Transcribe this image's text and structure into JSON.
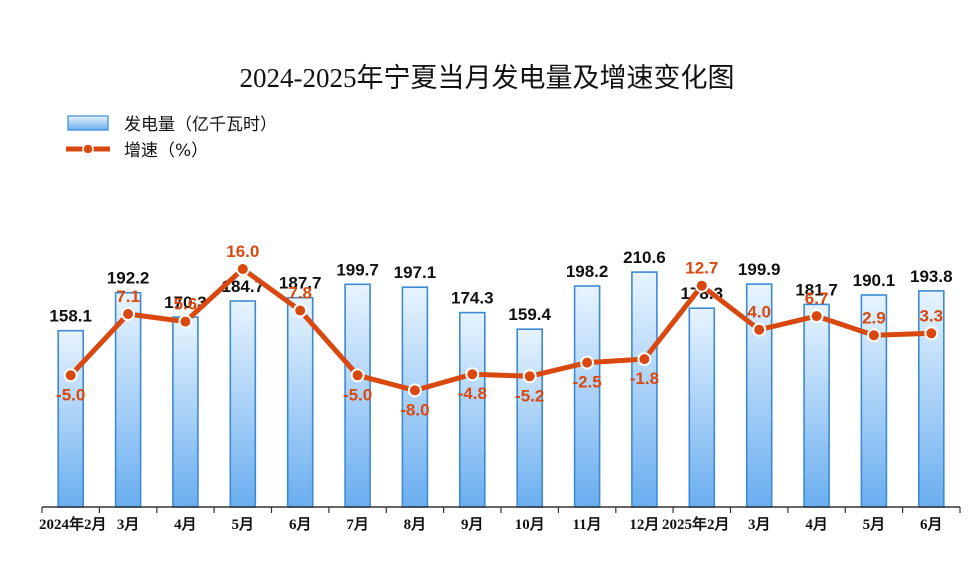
{
  "chart_data": {
    "type": "bar",
    "title": "2024-2025年宁夏当月发电量及增速变化图",
    "categories": [
      "2024年2月",
      "3月",
      "4月",
      "5月",
      "6月",
      "7月",
      "8月",
      "9月",
      "10月",
      "11月",
      "12月",
      "2025年2月",
      "3月",
      "4月",
      "5月",
      "6月"
    ],
    "series": [
      {
        "name": "发电量（亿千瓦时）",
        "type": "bar",
        "axis": "left",
        "values": [
          158.1,
          192.2,
          170.3,
          184.7,
          187.7,
          199.7,
          197.1,
          174.3,
          159.4,
          198.2,
          210.6,
          178.3,
          199.9,
          181.7,
          190.1,
          193.8
        ],
        "labels": [
          "158.1",
          "192.2",
          "170.3",
          "184.7",
          "187.7",
          "199.7",
          "197.1",
          "174.3",
          "159.4",
          "198.2",
          "210.6",
          "178.3",
          "199.9",
          "181.7",
          "190.1",
          "193.8"
        ]
      },
      {
        "name": "增速（%）",
        "type": "line",
        "axis": "right",
        "values": [
          -5.0,
          7.1,
          5.6,
          16.0,
          7.8,
          -5.0,
          -8.0,
          -4.8,
          -5.2,
          -2.5,
          -1.8,
          12.7,
          4.0,
          6.7,
          2.9,
          3.3
        ],
        "labels": [
          "-5.0",
          "7.1",
          "5.6",
          "16.0",
          "7.8",
          "-5.0",
          "-8.0",
          "-4.8",
          "-5.2",
          "-2.5",
          "-1.8",
          "12.7",
          "4.0",
          "6.7",
          "2.9",
          "3.3"
        ]
      }
    ],
    "ylim_left": [
      0,
      225
    ],
    "ylim_right": [
      -33,
      27
    ],
    "grid": false,
    "legend_position": "top-left",
    "colors": {
      "bar_top": "#e8f4fe",
      "bar_bottom": "#6aaef0",
      "bar_stroke": "#3c8ad4",
      "line": "#d9480f",
      "marker_fill": "#ffffff",
      "text": "#111111"
    }
  }
}
